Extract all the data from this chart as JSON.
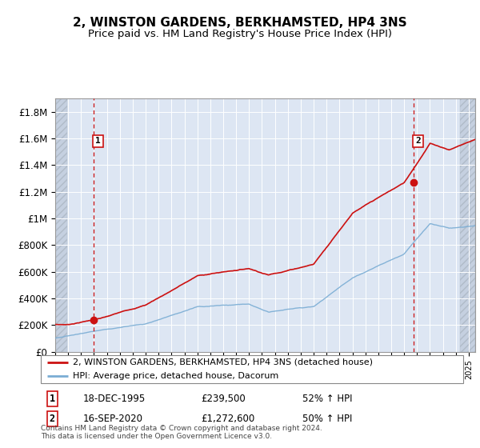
{
  "title": "2, WINSTON GARDENS, BERKHAMSTED, HP4 3NS",
  "subtitle": "Price paid vs. HM Land Registry's House Price Index (HPI)",
  "title_fontsize": 11,
  "subtitle_fontsize": 9.5,
  "hpi_color": "#7aadd4",
  "price_color": "#cc1111",
  "marker_color": "#cc1111",
  "annotation_box_color": "#cc1111",
  "vline_color": "#cc1111",
  "background_plot": "#dde6f3",
  "ylim": [
    0,
    1900000
  ],
  "yticks": [
    0,
    200000,
    400000,
    600000,
    800000,
    1000000,
    1200000,
    1400000,
    1600000,
    1800000
  ],
  "ytick_labels": [
    "£0",
    "£200K",
    "£400K",
    "£600K",
    "£800K",
    "£1M",
    "£1.2M",
    "£1.4M",
    "£1.6M",
    "£1.8M"
  ],
  "sale1_x": 1995.96,
  "sale1_y": 239500,
  "sale2_x": 2020.71,
  "sale2_y": 1272600,
  "sale1_date": "18-DEC-1995",
  "sale1_price": "£239,500",
  "sale1_hpi": "52% ↑ HPI",
  "sale2_date": "16-SEP-2020",
  "sale2_price": "£1,272,600",
  "sale2_hpi": "50% ↑ HPI",
  "legend_line1": "2, WINSTON GARDENS, BERKHAMSTED, HP4 3NS (detached house)",
  "legend_line2": "HPI: Average price, detached house, Dacorum",
  "footnote": "Contains HM Land Registry data © Crown copyright and database right 2024.\nThis data is licensed under the Open Government Licence v3.0.",
  "xmin": 1993,
  "xmax": 2025.5,
  "hatch_left_end": 1993.9,
  "hatch_right_start": 2024.3
}
